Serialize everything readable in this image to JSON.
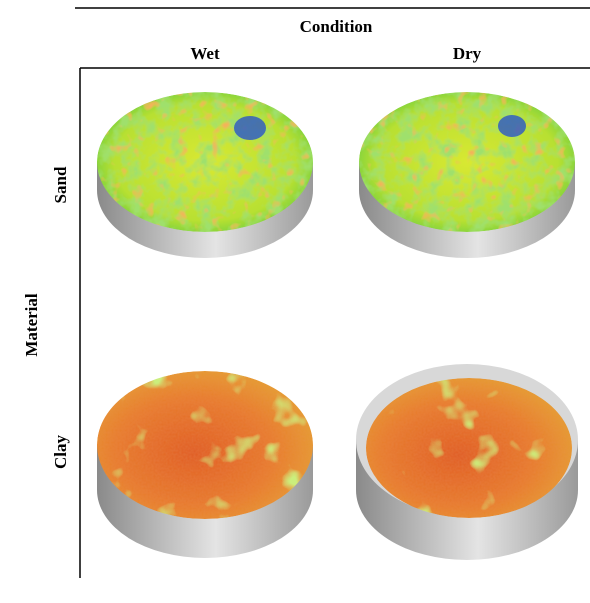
{
  "header": {
    "title": "Condition",
    "columns": [
      "Wet",
      "Dry"
    ]
  },
  "rows": {
    "title": "Material",
    "labels": [
      "Sand",
      "Clay"
    ]
  }
}
